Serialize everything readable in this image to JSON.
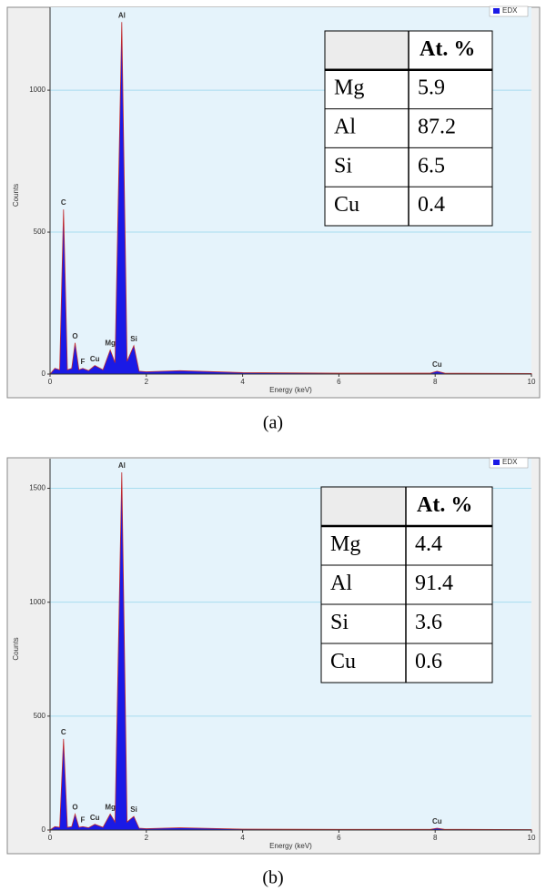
{
  "chart_data": [
    {
      "type": "area",
      "caption": "(a)",
      "x_label": "Energy (keV)",
      "y_label": "Counts",
      "xlim": [
        0,
        10
      ],
      "xticks": [
        0,
        2,
        4,
        6,
        8,
        10
      ],
      "ylim": [
        0,
        1260
      ],
      "yticks": [
        0,
        500,
        1000
      ],
      "grid": true,
      "legend": "top-right",
      "series": [
        {
          "name": "EDX",
          "color": "#1a1ae6",
          "x": [
            0,
            0.1,
            0.2,
            0.28,
            0.36,
            0.45,
            0.52,
            0.6,
            0.68,
            0.8,
            0.93,
            1.1,
            1.25,
            1.35,
            1.49,
            1.6,
            1.74,
            1.85,
            2.0,
            2.7,
            4,
            6,
            7.9,
            8.04,
            8.2,
            10
          ],
          "values": [
            0,
            20,
            15,
            580,
            15,
            20,
            110,
            15,
            20,
            12,
            30,
            15,
            85,
            40,
            1240,
            45,
            100,
            10,
            8,
            12,
            5,
            3,
            3,
            10,
            3,
            2
          ]
        }
      ],
      "peaks": [
        {
          "label": "C",
          "x": 0.28,
          "y": 580
        },
        {
          "label": "O",
          "x": 0.52,
          "y": 110
        },
        {
          "label": "F",
          "x": 0.68,
          "y": 20
        },
        {
          "label": "Cu",
          "x": 0.93,
          "y": 30
        },
        {
          "label": "Mg",
          "x": 1.25,
          "y": 85
        },
        {
          "label": "Al",
          "x": 1.49,
          "y": 1240
        },
        {
          "label": "Si",
          "x": 1.74,
          "y": 100
        },
        {
          "label": "Cu",
          "x": 8.04,
          "y": 10
        }
      ],
      "table": {
        "header": "At. %",
        "rows": [
          [
            "Mg",
            5.9
          ],
          [
            "Al",
            87.2
          ],
          [
            "Si",
            6.5
          ],
          [
            "Cu",
            0.4
          ]
        ]
      }
    },
    {
      "type": "area",
      "caption": "(b)",
      "x_label": "Energy (keV)",
      "y_label": "Counts",
      "xlim": [
        0,
        10
      ],
      "xticks": [
        0,
        2,
        4,
        6,
        8,
        10
      ],
      "ylim": [
        0,
        1590
      ],
      "yticks": [
        0,
        500,
        1000,
        1500
      ],
      "grid": true,
      "legend": "top-right",
      "series": [
        {
          "name": "EDX",
          "color": "#1a1ae6",
          "x": [
            0,
            0.1,
            0.2,
            0.28,
            0.36,
            0.45,
            0.52,
            0.6,
            0.68,
            0.8,
            0.93,
            1.1,
            1.25,
            1.35,
            1.49,
            1.6,
            1.74,
            1.85,
            2.0,
            2.7,
            4,
            6,
            7.9,
            8.04,
            8.2,
            10
          ],
          "values": [
            0,
            15,
            12,
            400,
            12,
            15,
            70,
            12,
            15,
            10,
            25,
            12,
            70,
            35,
            1570,
            35,
            60,
            8,
            6,
            10,
            4,
            3,
            3,
            8,
            3,
            2
          ]
        }
      ],
      "peaks": [
        {
          "label": "C",
          "x": 0.28,
          "y": 400
        },
        {
          "label": "O",
          "x": 0.52,
          "y": 70
        },
        {
          "label": "F",
          "x": 0.68,
          "y": 15
        },
        {
          "label": "Cu",
          "x": 0.93,
          "y": 25
        },
        {
          "label": "Mg",
          "x": 1.25,
          "y": 70
        },
        {
          "label": "Al",
          "x": 1.49,
          "y": 1570
        },
        {
          "label": "Si",
          "x": 1.74,
          "y": 60
        },
        {
          "label": "Cu",
          "x": 8.04,
          "y": 8
        }
      ],
      "table": {
        "header": "At. %",
        "rows": [
          [
            "Mg",
            4.4
          ],
          [
            "Al",
            91.4
          ],
          [
            "Si",
            3.6
          ],
          [
            "Cu",
            0.6
          ]
        ]
      }
    }
  ]
}
